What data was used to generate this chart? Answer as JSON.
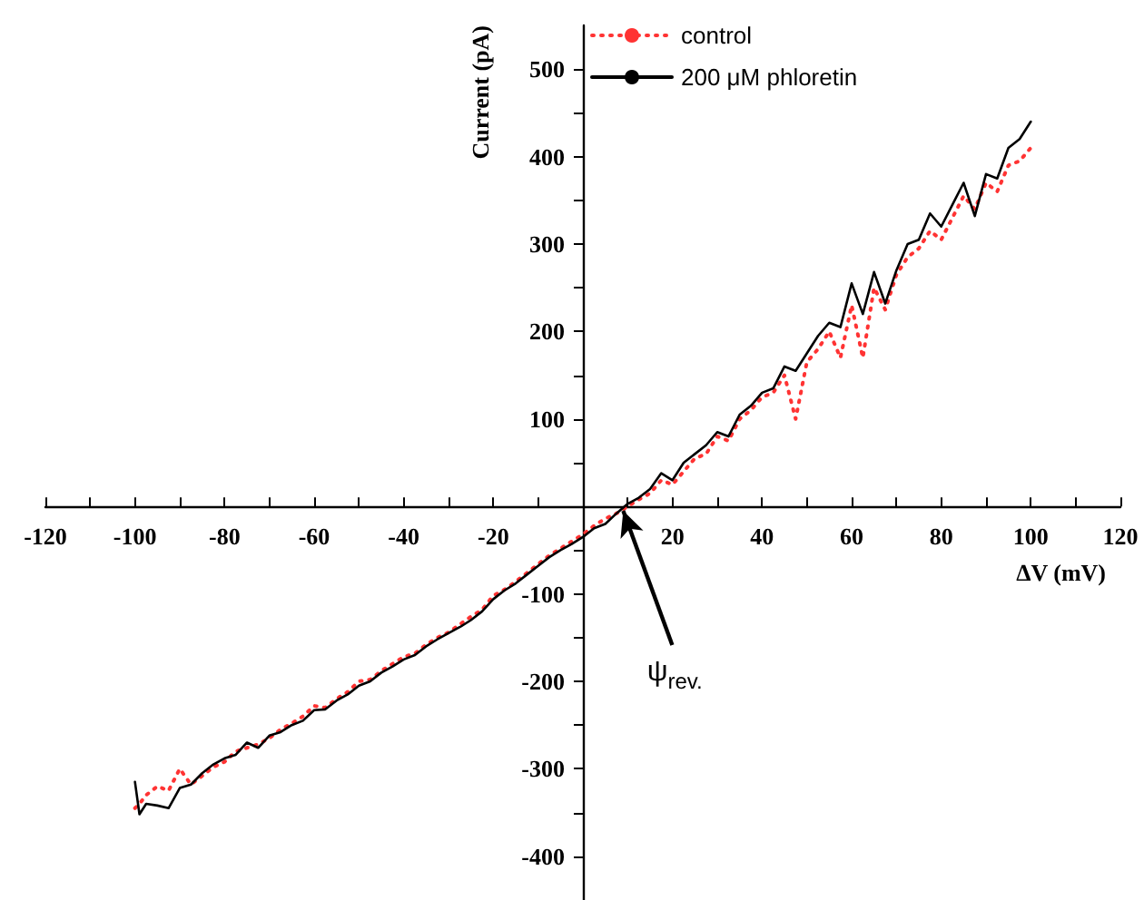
{
  "chart_data": {
    "type": "line",
    "xlabel": "ΔV (mV)",
    "ylabel": "Current (pA)",
    "x": [
      -100,
      -99,
      -97.5,
      -95,
      -92.5,
      -90,
      -87.5,
      -85,
      -82.5,
      -80,
      -77.5,
      -75,
      -72.5,
      -70,
      -67.5,
      -65,
      -62.5,
      -60,
      -57.5,
      -55,
      -52.5,
      -50,
      -47.5,
      -45,
      -42.5,
      -40,
      -37.5,
      -35,
      -32.5,
      -30,
      -27.5,
      -25,
      -22.5,
      -20,
      -17.5,
      -15,
      -12.5,
      -10,
      -7.5,
      -5,
      -2.5,
      0,
      2.5,
      5,
      7.5,
      10,
      12.5,
      15,
      17.5,
      20,
      22.5,
      25,
      27.5,
      30,
      32.5,
      35,
      37.5,
      40,
      42.5,
      45,
      47.5,
      50,
      52.5,
      55,
      57.5,
      60,
      62.5,
      65,
      67.5,
      70,
      72.5,
      75,
      77.5,
      80,
      82.5,
      85,
      87.5,
      90,
      92.5,
      95,
      97.5,
      100
    ],
    "series": [
      {
        "name": "control",
        "color": "#ff3333",
        "line_style": "dotted",
        "values": [
          -345,
          -340,
          -330,
          -320,
          -325,
          -300,
          -318,
          -308,
          -298,
          -292,
          -280,
          -276,
          -272,
          -265,
          -255,
          -248,
          -240,
          -228,
          -230,
          -220,
          -212,
          -200,
          -198,
          -188,
          -180,
          -172,
          -168,
          -158,
          -150,
          -144,
          -135,
          -126,
          -118,
          -102,
          -95,
          -86,
          -76,
          -66,
          -56,
          -48,
          -40,
          -32,
          -22,
          -14,
          -8,
          0,
          8,
          15,
          30,
          25,
          40,
          55,
          60,
          80,
          75,
          100,
          110,
          125,
          130,
          150,
          100,
          165,
          180,
          200,
          170,
          230,
          170,
          250,
          225,
          265,
          285,
          295,
          315,
          305,
          330,
          355,
          340,
          370,
          360,
          390,
          395,
          410
        ]
      },
      {
        "name": "200 μM phloretin",
        "color": "#000000",
        "line_style": "solid",
        "values": [
          -315,
          -352,
          -340,
          -342,
          -345,
          -322,
          -318,
          -305,
          -295,
          -288,
          -284,
          -270,
          -276,
          -262,
          -258,
          -250,
          -245,
          -233,
          -232,
          -222,
          -215,
          -205,
          -200,
          -190,
          -183,
          -175,
          -170,
          -160,
          -152,
          -145,
          -138,
          -130,
          -120,
          -106,
          -96,
          -88,
          -78,
          -68,
          -58,
          -50,
          -43,
          -35,
          -25,
          -20,
          -8,
          3,
          10,
          20,
          38,
          30,
          50,
          60,
          70,
          85,
          80,
          105,
          115,
          130,
          135,
          160,
          155,
          175,
          195,
          210,
          205,
          255,
          220,
          268,
          232,
          270,
          300,
          305,
          335,
          320,
          345,
          370,
          332,
          380,
          375,
          410,
          420,
          440
        ]
      }
    ],
    "xlim": [
      -120,
      120
    ],
    "xticks": [
      -120,
      {
        "value": -110,
        "label": null
      },
      -100,
      {
        "value": -90,
        "label": null
      },
      -80,
      {
        "value": -70,
        "label": null
      },
      -60,
      {
        "value": -50,
        "label": null
      },
      -40,
      {
        "value": -30,
        "label": null
      },
      -20,
      {
        "value": -10,
        "label": null
      },
      {
        "value": 10,
        "label": null
      },
      20,
      {
        "value": 30,
        "label": null
      },
      40,
      {
        "value": 50,
        "label": null
      },
      60,
      {
        "value": 70,
        "label": null
      },
      80,
      {
        "value": 90,
        "label": null
      },
      100,
      {
        "value": 110,
        "label": null
      },
      120
    ],
    "ylim": [
      -450,
      550
    ],
    "yticks": [
      -400,
      {
        "value": -350,
        "label": null
      },
      -300,
      {
        "value": -250,
        "label": null
      },
      -200,
      {
        "value": -150,
        "label": null
      },
      -100,
      {
        "value": -50,
        "label": null
      },
      {
        "value": 50,
        "label": null
      },
      100,
      {
        "value": 150,
        "label": null
      },
      200,
      {
        "value": 250,
        "label": null
      },
      300,
      {
        "value": 350,
        "label": null
      },
      400,
      {
        "value": 450,
        "label": null
      },
      500
    ],
    "annotations": [
      {
        "text": "ψ$_{rev.}$",
        "x": 9,
        "y": -5
      }
    ],
    "grid": false,
    "legend": "top",
    "marker": "none"
  }
}
